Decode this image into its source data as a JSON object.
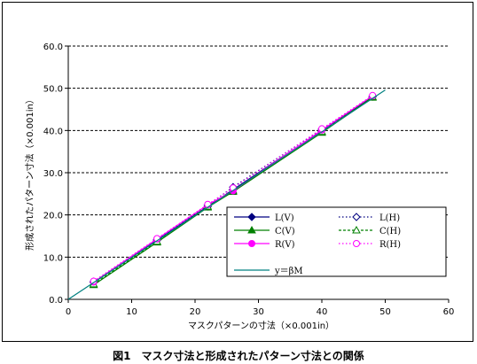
{
  "caption": "図1　マスク寸法と形成されたパターン寸法との関係",
  "chart_data": {
    "type": "line",
    "xlabel": "マスクパターンの寸法（×0.001in）",
    "ylabel": "形成されたパターン寸法（×0.001in）",
    "xlim": [
      0,
      60
    ],
    "ylim": [
      0,
      60
    ],
    "x_ticks": [
      "0",
      "10",
      "20",
      "30",
      "40",
      "50",
      "60"
    ],
    "y_ticks": [
      "0.0",
      "10.0",
      "20.0",
      "30.0",
      "40.0",
      "50.0",
      "60.0"
    ],
    "grid": "horizontal dashed",
    "legend_position": "center-right",
    "series": [
      {
        "name": "L(V)",
        "color": "#000080",
        "marker": "diamond-filled",
        "line": "solid",
        "x": [
          4,
          14,
          22,
          26,
          40,
          48
        ],
        "y": [
          4.0,
          14.0,
          22.0,
          26.0,
          40.0,
          48.0
        ]
      },
      {
        "name": "L(H)",
        "color": "#000080",
        "marker": "diamond-open",
        "line": "dotted",
        "x": [
          4,
          14,
          22,
          26,
          40,
          48
        ],
        "y": [
          4.2,
          14.2,
          22.3,
          26.6,
          40.3,
          48.1
        ]
      },
      {
        "name": "C(V)",
        "color": "#008000",
        "marker": "triangle-filled",
        "line": "solid",
        "x": [
          4,
          14,
          22,
          26,
          40,
          48
        ],
        "y": [
          3.4,
          13.5,
          21.8,
          25.5,
          39.5,
          47.8
        ]
      },
      {
        "name": "C(H)",
        "color": "#008000",
        "marker": "triangle-open",
        "line": "dashed",
        "x": [
          4,
          14,
          22,
          26,
          40,
          48
        ],
        "y": [
          3.6,
          13.7,
          22.0,
          25.8,
          39.7,
          48.0
        ]
      },
      {
        "name": "R(V)",
        "color": "#ff00ff",
        "marker": "circle-filled",
        "line": "solid",
        "x": [
          4,
          14,
          22,
          26,
          40,
          48
        ],
        "y": [
          4.1,
          14.3,
          22.4,
          25.7,
          40.1,
          48.2
        ]
      },
      {
        "name": "R(H)",
        "color": "#ff00ff",
        "marker": "circle-open",
        "line": "dotted",
        "x": [
          4,
          14,
          22,
          26,
          40,
          48
        ],
        "y": [
          4.3,
          14.4,
          22.5,
          26.4,
          40.4,
          48.3
        ]
      },
      {
        "name": "y＝βM",
        "color": "#008080",
        "marker": "none",
        "line": "solid",
        "x": [
          0,
          50
        ],
        "y": [
          0,
          49.6
        ]
      }
    ]
  }
}
